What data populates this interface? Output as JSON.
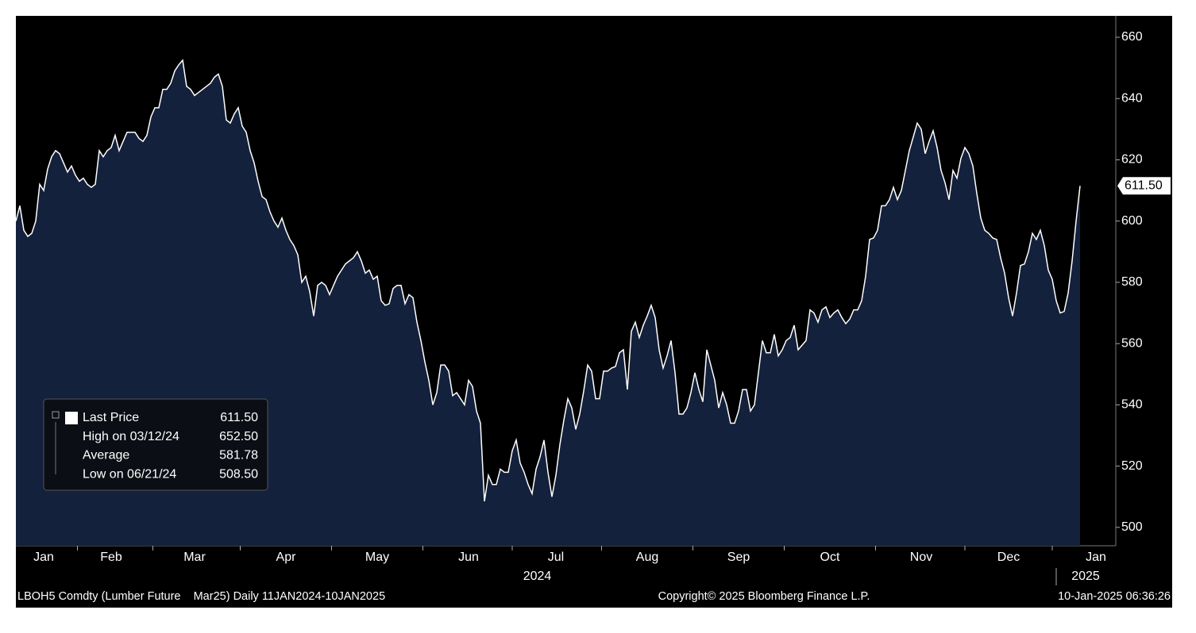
{
  "chart_data": {
    "type": "area",
    "categories": [
      null,
      null,
      null,
      null,
      null,
      null,
      null,
      "Jan",
      null,
      null,
      null,
      null,
      null,
      null,
      null,
      null,
      null,
      null,
      null,
      null,
      null,
      null,
      null,
      null,
      "Feb",
      null,
      null,
      null,
      null,
      null,
      null,
      null,
      null,
      null,
      null,
      null,
      null,
      null,
      null,
      null,
      null,
      null,
      null,
      null,
      null,
      "Mar",
      null,
      null,
      null,
      null,
      null,
      null,
      null,
      null,
      null,
      null,
      null,
      null,
      null,
      null,
      null,
      null,
      null,
      null,
      null,
      null,
      null,
      null,
      "Apr",
      null,
      null,
      null,
      null,
      null,
      null,
      null,
      null,
      null,
      null,
      null,
      null,
      null,
      null,
      null,
      null,
      null,
      null,
      null,
      null,
      null,
      null,
      "May",
      null,
      null,
      null,
      null,
      null,
      null,
      null,
      null,
      null,
      null,
      null,
      null,
      null,
      null,
      null,
      null,
      null,
      null,
      null,
      null,
      null,
      null,
      "Jun",
      null,
      null,
      null,
      null,
      null,
      null,
      null,
      null,
      null,
      null,
      null,
      null,
      null,
      null,
      null,
      null,
      null,
      null,
      null,
      null,
      null,
      "Jul",
      null,
      null,
      null,
      null,
      null,
      null,
      null,
      null,
      null,
      null,
      null,
      null,
      null,
      null,
      null,
      null,
      null,
      null,
      null,
      null,
      null,
      null,
      "Aug",
      null,
      null,
      null,
      null,
      null,
      null,
      null,
      null,
      null,
      null,
      null,
      null,
      null,
      null,
      null,
      null,
      null,
      null,
      null,
      null,
      null,
      null,
      "Sep",
      null,
      null,
      null,
      null,
      null,
      null,
      null,
      null,
      null,
      null,
      null,
      null,
      null,
      null,
      null,
      null,
      null,
      null,
      null,
      null,
      null,
      null,
      "Oct",
      null,
      null,
      null,
      null,
      null,
      null,
      null,
      null,
      null,
      null,
      null,
      null,
      null,
      null,
      null,
      null,
      null,
      null,
      null,
      null,
      null,
      null,
      "Nov",
      null,
      null,
      null,
      null,
      null,
      null,
      null,
      null,
      null,
      null,
      null,
      null,
      null,
      null,
      null,
      null,
      null,
      null,
      null,
      null,
      null,
      "Dec",
      null,
      null,
      null,
      null,
      null,
      null,
      null,
      null,
      null,
      null,
      null,
      null,
      null,
      null,
      null,
      null,
      null,
      null,
      null,
      null,
      null,
      "Jan",
      null,
      null,
      null,
      null,
      null
    ],
    "years": [
      "2024",
      "2025"
    ],
    "series": [
      {
        "name": "Last Price",
        "color": "#ffffff",
        "fill": "#13213d",
        "values": [
          600,
          605,
          597,
          595,
          596,
          600,
          612,
          610,
          617,
          621,
          623,
          622,
          619,
          616,
          618,
          615,
          613,
          614,
          612,
          611,
          612,
          623,
          621,
          623,
          624,
          628,
          623,
          626,
          629,
          629,
          629,
          627,
          626,
          628,
          634,
          637,
          637,
          643,
          643,
          645,
          649,
          651,
          652.5,
          644,
          643,
          641,
          642,
          643,
          644,
          645,
          647,
          648,
          644,
          633,
          632,
          635,
          637,
          631,
          629,
          623,
          619,
          613,
          608,
          607,
          603,
          600,
          598,
          601,
          597,
          594,
          592,
          589,
          580,
          582,
          577,
          569,
          579,
          580,
          579,
          576,
          579,
          582,
          584,
          586,
          587,
          588,
          590,
          587,
          583,
          584,
          581,
          582,
          574,
          572.5,
          573,
          578,
          579,
          579,
          573,
          576,
          575,
          567,
          561,
          554,
          548,
          540,
          544,
          553,
          553,
          551,
          543,
          544,
          542,
          540,
          548,
          546,
          538,
          534,
          508.5,
          517,
          514,
          514,
          519,
          518,
          518,
          525,
          528.5,
          521,
          518,
          514,
          511,
          519,
          523,
          528.5,
          518,
          510,
          517,
          527,
          535,
          542,
          539,
          532,
          537,
          544.5,
          553,
          551,
          542,
          542,
          551,
          551,
          552,
          552.5,
          557,
          558,
          545,
          564,
          567,
          562,
          566,
          569,
          572.5,
          568.5,
          558,
          552,
          556,
          561,
          550.5,
          537,
          537,
          539,
          544,
          550.5,
          545,
          541,
          558,
          553,
          548,
          539,
          544,
          540,
          534,
          534,
          538,
          545,
          545,
          538,
          540,
          550.5,
          561,
          557,
          557,
          563,
          556,
          558,
          561,
          562,
          566,
          558,
          559.5,
          561,
          571,
          570,
          567,
          571,
          572,
          568.5,
          570,
          571,
          568.5,
          566.5,
          568,
          571,
          571,
          574,
          582,
          594,
          594.5,
          597,
          605,
          605,
          607,
          611,
          607,
          610,
          616.5,
          623,
          627.5,
          632,
          630,
          622,
          626,
          629.5,
          624,
          616.5,
          612.5,
          607,
          616.5,
          614,
          620.5,
          624,
          622,
          618,
          609,
          601,
          597,
          596,
          594.5,
          594,
          588,
          583,
          575,
          569,
          576.5,
          585.5,
          586,
          590,
          596,
          594,
          597,
          592,
          584,
          581,
          574,
          570,
          570.5,
          576.5,
          587,
          600,
          611.5,
          null,
          null,
          null,
          null,
          null,
          null,
          null,
          null,
          null
        ]
      }
    ],
    "last_price_label": "611.50",
    "ylim": [
      494,
      667
    ],
    "yticks": [
      500,
      520,
      540,
      560,
      580,
      600,
      620,
      640,
      660
    ],
    "legend_rows": [
      {
        "label": "Last Price",
        "value": "611.50"
      },
      {
        "label": "High on 03/12/24",
        "value": "652.50"
      },
      {
        "label": "Average",
        "value": "581.78"
      },
      {
        "label": "Low on 06/21/24",
        "value": "508.50"
      }
    ],
    "footer": {
      "left": "LBOH5 Comdty (Lumber Future    Mar25) Daily 11JAN2024-10JAN2025",
      "center": "Copyright© 2025 Bloomberg Finance L.P.",
      "right": "10-Jan-2025 06:36:26"
    }
  }
}
